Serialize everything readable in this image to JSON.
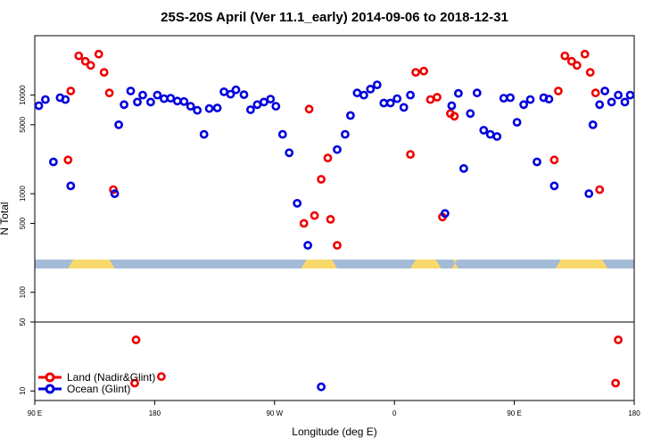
{
  "chart_data": {
    "type": "scatter",
    "title": "25S-20S April (Ver 11.1_early)   2014-09-06 to 2018-12-31",
    "xlabel": "Longitude (deg E)",
    "ylabel": "N Total",
    "x_ticks": [
      {
        "value": 90,
        "label": "90 E"
      },
      {
        "value": 180,
        "label": "180"
      },
      {
        "value": 270,
        "label": "90 W"
      },
      {
        "value": 360,
        "label": "0"
      },
      {
        "value": 450,
        "label": "90 E"
      },
      {
        "value": 540,
        "label": "180"
      }
    ],
    "xlim": [
      90,
      540
    ],
    "upper_panel": {
      "scale": "log",
      "ylim": [
        50,
        40000
      ],
      "y_ticks": [
        {
          "value": 100,
          "label": "100"
        },
        {
          "value": 500,
          "label": "500"
        },
        {
          "value": 1000,
          "label": "1000"
        },
        {
          "value": 5000,
          "label": "5000"
        },
        {
          "value": 10000,
          "label": "10000"
        }
      ]
    },
    "lower_panel": {
      "scale": "log",
      "ylim": [
        8,
        50
      ],
      "y_ticks": [
        {
          "value": 10,
          "label": "10"
        },
        {
          "value": 50,
          "label": "50"
        }
      ]
    },
    "series": [
      {
        "name": "Land (Nadir&Glint)",
        "color": "#ee0000",
        "points": [
          [
            115,
            2200
          ],
          [
            117,
            11000
          ],
          [
            123,
            25000
          ],
          [
            128,
            22000
          ],
          [
            132,
            20000
          ],
          [
            138,
            26000
          ],
          [
            142,
            17000
          ],
          [
            146,
            10500
          ],
          [
            149,
            1100
          ],
          [
            165,
            12
          ],
          [
            166,
            33
          ],
          [
            185,
            14
          ],
          [
            292,
            500
          ],
          [
            296,
            7200
          ],
          [
            300,
            600
          ],
          [
            305,
            1400
          ],
          [
            310,
            2300
          ],
          [
            312,
            550
          ],
          [
            317,
            300
          ],
          [
            372,
            2500
          ],
          [
            376,
            17000
          ],
          [
            382,
            17500
          ],
          [
            387,
            9000
          ],
          [
            392,
            9500
          ],
          [
            396,
            580
          ],
          [
            402,
            6500
          ],
          [
            405,
            6100
          ],
          [
            480,
            2200
          ],
          [
            483,
            11000
          ],
          [
            488,
            25000
          ],
          [
            493,
            22000
          ],
          [
            497,
            20000
          ],
          [
            503,
            26000
          ],
          [
            507,
            17000
          ],
          [
            511,
            10500
          ],
          [
            514,
            1100
          ],
          [
            526,
            12
          ],
          [
            528,
            33
          ]
        ]
      },
      {
        "name": "Ocean (Glint)",
        "color": "#0000dd",
        "points": [
          [
            93,
            7800
          ],
          [
            98,
            9000
          ],
          [
            104,
            2100
          ],
          [
            109,
            9400
          ],
          [
            113,
            9000
          ],
          [
            117,
            1200
          ],
          [
            150,
            1000
          ],
          [
            153,
            5000
          ],
          [
            157,
            8000
          ],
          [
            162,
            11000
          ],
          [
            167,
            8500
          ],
          [
            171,
            10000
          ],
          [
            177,
            8500
          ],
          [
            182,
            10000
          ],
          [
            187,
            9200
          ],
          [
            192,
            9300
          ],
          [
            197,
            8700
          ],
          [
            202,
            8600
          ],
          [
            207,
            7700
          ],
          [
            212,
            7000
          ],
          [
            217,
            4000
          ],
          [
            221,
            7300
          ],
          [
            227,
            7400
          ],
          [
            232,
            10800
          ],
          [
            237,
            10200
          ],
          [
            241,
            11300
          ],
          [
            247,
            10100
          ],
          [
            252,
            7100
          ],
          [
            257,
            8000
          ],
          [
            262,
            8500
          ],
          [
            267,
            9100
          ],
          [
            271,
            7700
          ],
          [
            276,
            4000
          ],
          [
            281,
            2600
          ],
          [
            287,
            800
          ],
          [
            295,
            300
          ],
          [
            305,
            11
          ],
          [
            317,
            2800
          ],
          [
            323,
            4000
          ],
          [
            327,
            6200
          ],
          [
            332,
            10500
          ],
          [
            337,
            10000
          ],
          [
            342,
            11500
          ],
          [
            347,
            12700
          ],
          [
            352,
            8300
          ],
          [
            357,
            8300
          ],
          [
            362,
            9200
          ],
          [
            367,
            7500
          ],
          [
            372,
            10000
          ],
          [
            398,
            630
          ],
          [
            403,
            7800
          ],
          [
            408,
            10400
          ],
          [
            412,
            1800
          ],
          [
            417,
            6500
          ],
          [
            422,
            10500
          ],
          [
            427,
            4400
          ],
          [
            432,
            4000
          ],
          [
            437,
            3800
          ],
          [
            442,
            9300
          ],
          [
            447,
            9400
          ],
          [
            452,
            5300
          ],
          [
            457,
            8000
          ],
          [
            462,
            9000
          ],
          [
            467,
            2100
          ],
          [
            472,
            9400
          ],
          [
            476,
            9100
          ],
          [
            480,
            1200
          ],
          [
            506,
            1000
          ],
          [
            509,
            5000
          ],
          [
            514,
            8000
          ],
          [
            518,
            11000
          ],
          [
            523,
            8500
          ],
          [
            528,
            10000
          ],
          [
            533,
            8500
          ],
          [
            537,
            10000
          ]
        ]
      }
    ],
    "background_band": {
      "ocean_color": "#a4bbd8",
      "land_color": "#f8d96b",
      "land_ranges": [
        [
          115,
          150
        ],
        [
          290,
          317
        ],
        [
          372,
          395
        ],
        [
          403,
          408
        ],
        [
          481,
          520
        ]
      ]
    },
    "legend": {
      "position": "bottom-left",
      "entries": [
        {
          "label": "Land (Nadir&Glint)",
          "color": "#ee0000"
        },
        {
          "label": "Ocean (Glint)",
          "color": "#0000dd"
        }
      ]
    }
  }
}
